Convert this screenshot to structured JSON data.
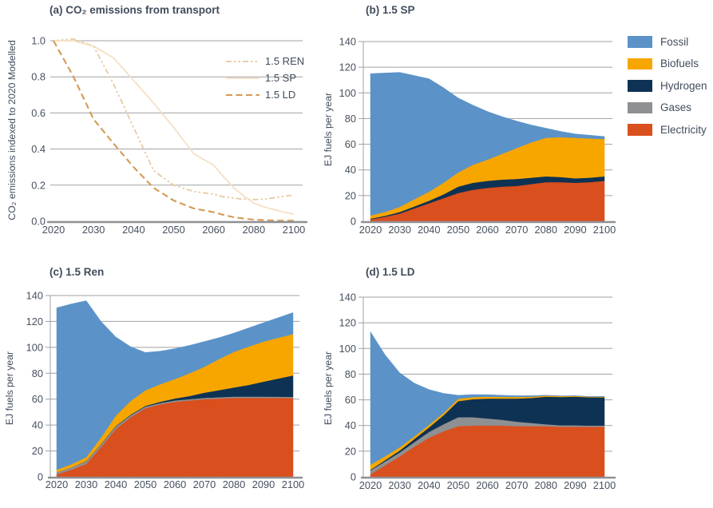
{
  "colors": {
    "text": "#414C5C",
    "grid": "#A0A1A3",
    "axis_line": "#8F9093",
    "fossil": "#5B93C8",
    "biofuels": "#F7A600",
    "hydrogen": "#0E3253",
    "gases": "#8F9092",
    "electricity": "#D94F1E",
    "ren": "#E6C89E",
    "sp": "#F5DEC1",
    "ld": "#D49A55"
  },
  "legend": {
    "items": [
      {
        "label": "Fossil",
        "color_key": "fossil"
      },
      {
        "label": "Biofuels",
        "color_key": "biofuels"
      },
      {
        "label": "Hydrogen",
        "color_key": "hydrogen"
      },
      {
        "label": "Gases",
        "color_key": "gases"
      },
      {
        "label": "Electricity",
        "color_key": "electricity"
      }
    ]
  },
  "panels": {
    "a": {
      "title": "(a) CO₂ emissions from transport",
      "ylabel": "CO₂ emissions indexed to 2020 Modelled",
      "chart_data": {
        "type": "line",
        "title": "(a) CO2 emissions from transport",
        "ylabel": "CO2 emissions indexed to 2020 Modelled",
        "ylim": [
          0,
          1.0
        ],
        "yticks": [
          0,
          0.2,
          0.4,
          0.6,
          0.8,
          1.0
        ],
        "ytick_labels": [
          "0.0",
          "0.2",
          "0.4",
          "0.6",
          "0.8",
          "1.0"
        ],
        "xtick_years": [
          2020,
          2030,
          2040,
          2050,
          2060,
          2080,
          2100
        ],
        "xtick_labels": [
          "2020",
          "2030",
          "2040",
          "2050",
          "2060",
          "2080",
          "2100"
        ],
        "x": [
          2020,
          2025,
          2030,
          2035,
          2040,
          2045,
          2050,
          2055,
          2060,
          2065,
          2070,
          2075,
          2080,
          2085,
          2090,
          2095,
          2100
        ],
        "grid": "horizontal-only",
        "legend_position": "upper-right-inside",
        "series": [
          {
            "name": "1.5 REN",
            "color_key": "ren",
            "dash": "dashdot",
            "width": 1.7,
            "values": [
              1.0,
              1.01,
              0.97,
              0.76,
              0.52,
              0.28,
              0.2,
              0.165,
              0.15,
              0.135,
              0.128,
              0.122,
              0.12,
              0.122,
              0.13,
              0.138,
              0.145
            ]
          },
          {
            "name": "1.5 SP",
            "color_key": "sp",
            "dash": "solid",
            "width": 1.7,
            "values": [
              1.0,
              1.0,
              0.97,
              0.905,
              0.78,
              0.655,
              0.52,
              0.375,
              0.31,
              0.245,
              0.185,
              0.14,
              0.1,
              0.08,
              0.065,
              0.05,
              0.04
            ]
          },
          {
            "name": "1.5 LD",
            "color_key": "ld",
            "dash": "dashed",
            "width": 2.1,
            "values": [
              1.0,
              0.8,
              0.565,
              0.43,
              0.3,
              0.185,
              0.115,
              0.071,
              0.05,
              0.035,
              0.022,
              0.015,
              0.009,
              0.006,
              0.004,
              0.003,
              0.003
            ]
          }
        ]
      }
    },
    "b": {
      "title": "(b) 1.5 SP",
      "ylabel": "EJ fuels per year",
      "chart_data": {
        "type": "stacked_area",
        "title": "(b) 1.5 SP",
        "ylabel": "EJ fuels per year",
        "ylim": [
          0,
          140
        ],
        "yticks": [
          0,
          20,
          40,
          60,
          80,
          100,
          120,
          140
        ],
        "ytick_labels": [
          "0",
          "20",
          "40",
          "60",
          "80",
          "100",
          "120",
          "140"
        ],
        "xticks": [
          2020,
          2030,
          2040,
          2050,
          2060,
          2070,
          2080,
          2090,
          2100
        ],
        "xtick_labels": [
          "2020",
          "2030",
          "2040",
          "2050",
          "2060",
          "2070",
          "2080",
          "2090",
          "2100"
        ],
        "x": [
          2020,
          2025,
          2030,
          2035,
          2040,
          2045,
          2050,
          2055,
          2060,
          2065,
          2070,
          2075,
          2080,
          2085,
          2090,
          2095,
          2100
        ],
        "stack_order": "bottom-to-top",
        "series": [
          {
            "name": "Electricity",
            "color_key": "electricity",
            "values": [
              1.5,
              3.5,
              6,
              10,
              14,
              18,
              22,
              24.5,
              26,
              27,
              27.5,
              29,
              30.5,
              30.5,
              30,
              30.5,
              31.5
            ]
          },
          {
            "name": "Hydrogen",
            "color_key": "hydrogen",
            "values": [
              0.5,
              0.8,
              1.2,
              1.6,
              2,
              3,
              5,
              5.5,
              5.5,
              5.5,
              5.5,
              5,
              4.5,
              4,
              3.5,
              3.5,
              3.5
            ]
          },
          {
            "name": "Biofuels",
            "color_key": "biofuels",
            "values": [
              2.5,
              3,
              4,
              5.5,
              7,
              9,
              11,
              14,
              16.5,
              20,
              24,
              27.5,
              30,
              31,
              31.5,
              30.5,
              29
            ]
          },
          {
            "name": "Fossil",
            "color_key": "fossil",
            "values": [
              110.5,
              108.2,
              104.8,
              96.4,
              88,
              74,
              58,
              46.5,
              37.5,
              29,
              21,
              13.5,
              7.5,
              4.5,
              3,
              2.5,
              2
            ]
          }
        ]
      }
    },
    "c": {
      "title": "(c) 1.5 Ren",
      "ylabel": "EJ fuels per year",
      "chart_data": {
        "type": "stacked_area",
        "title": "(c) 1.5 Ren",
        "ylabel": "EJ fuels per year",
        "ylim": [
          0,
          140
        ],
        "yticks": [
          0,
          20,
          40,
          60,
          80,
          100,
          120,
          140
        ],
        "ytick_labels": [
          "0",
          "20",
          "40",
          "60",
          "80",
          "100",
          "120",
          "140"
        ],
        "xticks": [
          2020,
          2030,
          2040,
          2050,
          2060,
          2070,
          2080,
          2090,
          2100
        ],
        "xtick_labels": [
          "2020",
          "2030",
          "2040",
          "2050",
          "2060",
          "2070",
          "2080",
          "2090",
          "2100"
        ],
        "x": [
          2020,
          2025,
          2030,
          2035,
          2040,
          2045,
          2050,
          2055,
          2060,
          2065,
          2070,
          2075,
          2080,
          2085,
          2090,
          2095,
          2100
        ],
        "stack_order": "bottom-to-top",
        "series": [
          {
            "name": "Electricity",
            "color_key": "electricity",
            "values": [
              2,
              5.5,
              10,
              23,
              37,
              46,
              53,
              56,
              58,
              59,
              60,
              60.5,
              61,
              61,
              61,
              61,
              61
            ]
          },
          {
            "name": "Gases",
            "color_key": "gases",
            "values": [
              1.5,
              1.8,
              2,
              2,
              1.8,
              1.5,
              1.2,
              1,
              1,
              1,
              1,
              1,
              1,
              1,
              1,
              0.9,
              0.8
            ]
          },
          {
            "name": "Hydrogen",
            "color_key": "hydrogen",
            "values": [
              0,
              0,
              0.2,
              0.3,
              0.4,
              0.5,
              0.6,
              1,
              1.5,
              2.5,
              4,
              5.5,
              7,
              9,
              11.5,
              14,
              16.5
            ]
          },
          {
            "name": "Biofuels",
            "color_key": "biofuels",
            "values": [
              2,
              2.5,
              3,
              5,
              8,
              10.5,
              12,
              13.5,
              15,
              17.5,
              20,
              24,
              27.5,
              29.5,
              31,
              31.5,
              32
            ]
          },
          {
            "name": "Fossil",
            "color_key": "fossil",
            "values": [
              125,
              123.7,
              120.8,
              89.7,
              60.8,
              42,
              29.2,
              25.5,
              23.5,
              21.5,
              19.5,
              16.5,
              14.5,
              14.5,
              14.5,
              15.5,
              16.5
            ]
          }
        ]
      }
    },
    "d": {
      "title": "(d) 1.5 LD",
      "ylabel": "EJ fuels per year",
      "chart_data": {
        "type": "stacked_area",
        "title": "(d) 1.5 LD",
        "ylabel": "EJ fuels per year",
        "ylim": [
          0,
          140
        ],
        "yticks": [
          0,
          20,
          40,
          60,
          80,
          100,
          120,
          140
        ],
        "ytick_labels": [
          "0",
          "20",
          "40",
          "60",
          "80",
          "100",
          "120",
          "140"
        ],
        "xticks": [
          2020,
          2030,
          2040,
          2050,
          2060,
          2070,
          2080,
          2090,
          2100
        ],
        "xtick_labels": [
          "2020",
          "2030",
          "2040",
          "2050",
          "2060",
          "2070",
          "2080",
          "2090",
          "2100"
        ],
        "x": [
          2020,
          2025,
          2030,
          2035,
          2040,
          2045,
          2050,
          2055,
          2060,
          2065,
          2070,
          2075,
          2080,
          2085,
          2090,
          2095,
          2100
        ],
        "stack_order": "bottom-to-top",
        "series": [
          {
            "name": "Electricity",
            "color_key": "electricity",
            "values": [
              2,
              9,
              16,
              23.5,
              30.5,
              35.5,
              39.5,
              40,
              40,
              40,
              39.5,
              39.5,
              39.5,
              39,
              39,
              39,
              39
            ]
          },
          {
            "name": "Gases",
            "color_key": "gases",
            "values": [
              3,
              3,
              3,
              3.5,
              4.5,
              5.5,
              7,
              6.5,
              5.5,
              4.5,
              3.5,
              2.5,
              1.5,
              1.2,
              1.2,
              1,
              1
            ]
          },
          {
            "name": "Hydrogen",
            "color_key": "hydrogen",
            "values": [
              0.5,
              1,
              1.5,
              2.5,
              3.5,
              7,
              12.5,
              14,
              15.5,
              16.5,
              18,
              19.5,
              21.5,
              22,
              22.3,
              22,
              22
            ]
          },
          {
            "name": "Biofuels",
            "color_key": "biofuels",
            "values": [
              4,
              3,
              2.5,
              2,
              2,
              1.8,
              1.8,
              1.6,
              1.5,
              1.3,
              1.2,
              1,
              0.8,
              0.7,
              0.6,
              0.5,
              0.5
            ]
          },
          {
            "name": "Fossil",
            "color_key": "fossil",
            "values": [
              103.5,
              79,
              58,
              41.5,
              27.5,
              15.2,
              2.7,
              2,
              1.5,
              1.2,
              1,
              0.7,
              0.3,
              0.2,
              0.1,
              0.1,
              0.1
            ]
          }
        ]
      }
    }
  }
}
